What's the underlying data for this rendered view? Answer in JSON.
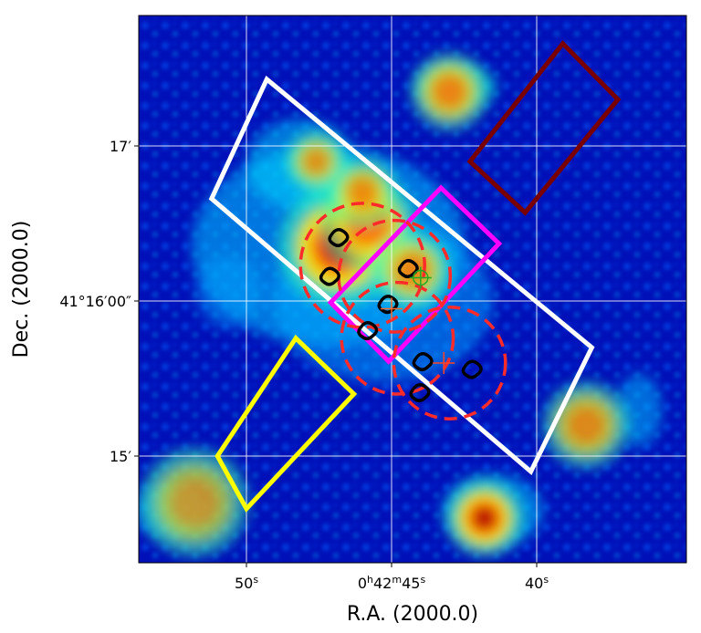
{
  "chart_data": {
    "type": "heatmap",
    "title": "",
    "xlabel": "R.A. (2000.0)",
    "ylabel": "Dec. (2000.0)",
    "colormap": "jet",
    "grid": true,
    "grid_color": "#ffffff",
    "x_ticks": [
      {
        "ra_sec": 50,
        "label_main": "50",
        "label_sup": "s",
        "prefix": ""
      },
      {
        "ra_sec": 45,
        "label_main": "45",
        "label_sup": "s",
        "prefix": "0h42m"
      },
      {
        "ra_sec": 40,
        "label_main": "40",
        "label_sup": "s",
        "prefix": ""
      }
    ],
    "y_ticks": [
      {
        "dec_arcmin": 17,
        "label": "17′"
      },
      {
        "dec_arcmin": 16,
        "label": "41°16′00″"
      },
      {
        "dec_arcmin": 15,
        "label": "15′"
      }
    ],
    "hotspots": [
      {
        "ra_sec": 46.8,
        "dec_arcmin": 16.35,
        "intensity": 1.0,
        "size": 0.28
      },
      {
        "ra_sec": 45.8,
        "dec_arcmin": 16.5,
        "intensity": 0.85,
        "size": 0.22
      },
      {
        "ra_sec": 44.3,
        "dec_arcmin": 16.2,
        "intensity": 0.7,
        "size": 0.18
      },
      {
        "ra_sec": 43.0,
        "dec_arcmin": 17.35,
        "intensity": 0.7,
        "size": 0.18
      },
      {
        "ra_sec": 41.8,
        "dec_arcmin": 14.6,
        "intensity": 1.0,
        "size": 0.18
      },
      {
        "ra_sec": 47.6,
        "dec_arcmin": 16.9,
        "intensity": 0.6,
        "size": 0.14
      },
      {
        "ra_sec": 46.0,
        "dec_arcmin": 16.7,
        "intensity": 0.65,
        "size": 0.16
      },
      {
        "ra_sec": 38.3,
        "dec_arcmin": 15.2,
        "intensity": 0.6,
        "size": 0.2
      },
      {
        "ra_sec": 51.8,
        "dec_arcmin": 14.7,
        "intensity": 0.45,
        "size": 0.25
      }
    ],
    "regions": [
      {
        "name": "white-box",
        "color": "#ffffff",
        "shape": "polygon",
        "points_ra_dec": [
          [
            51.2,
            16.66
          ],
          [
            49.3,
            17.43
          ],
          [
            38.1,
            15.7
          ],
          [
            40.2,
            14.9
          ]
        ]
      },
      {
        "name": "magenta-box",
        "color": "#ff00ff",
        "shape": "polygon",
        "points_ra_dec": [
          [
            47.1,
            15.99
          ],
          [
            43.3,
            16.73
          ],
          [
            41.3,
            16.37
          ],
          [
            45.1,
            15.61
          ]
        ]
      },
      {
        "name": "yellow-box",
        "color": "#ffff00",
        "shape": "polygon",
        "points_ra_dec": [
          [
            51.0,
            15.0
          ],
          [
            48.3,
            15.76
          ],
          [
            46.3,
            15.4
          ],
          [
            50.0,
            14.66
          ]
        ]
      },
      {
        "name": "dark-red-box",
        "color": "#7a0000",
        "shape": "polygon",
        "points_ra_dec": [
          [
            42.3,
            16.9
          ],
          [
            39.1,
            17.66
          ],
          [
            37.2,
            17.3
          ],
          [
            40.4,
            16.57
          ]
        ]
      }
    ],
    "circles": [
      {
        "ra_sec": 46.0,
        "dec_arcmin": 16.23,
        "radius_arcmin": 0.4,
        "color": "#ff2a2a"
      },
      {
        "ra_sec": 44.9,
        "dec_arcmin": 16.16,
        "radius_arcmin": 0.36,
        "color": "#ff2a2a"
      },
      {
        "ra_sec": 44.8,
        "dec_arcmin": 15.76,
        "radius_arcmin": 0.36,
        "color": "#ff2a2a"
      },
      {
        "ra_sec": 43.0,
        "dec_arcmin": 15.6,
        "radius_arcmin": 0.36,
        "color": "#ff2a2a"
      }
    ],
    "contours": [
      {
        "ra_sec": 46.8,
        "dec_arcmin": 16.4
      },
      {
        "ra_sec": 47.1,
        "dec_arcmin": 16.15
      },
      {
        "ra_sec": 44.4,
        "dec_arcmin": 16.2
      },
      {
        "ra_sec": 45.1,
        "dec_arcmin": 15.97
      },
      {
        "ra_sec": 45.8,
        "dec_arcmin": 15.8
      },
      {
        "ra_sec": 43.9,
        "dec_arcmin": 15.6
      },
      {
        "ra_sec": 42.2,
        "dec_arcmin": 15.55
      },
      {
        "ra_sec": 44.0,
        "dec_arcmin": 15.4
      }
    ],
    "markers": [
      {
        "ra_sec": 44.0,
        "dec_arcmin": 16.15,
        "color": "#22aa22",
        "kind": "circle-cross"
      },
      {
        "ra_sec": 45.0,
        "dec_arcmin": 15.95,
        "color": "#ff6a2a",
        "kind": "plus"
      },
      {
        "ra_sec": 43.2,
        "dec_arcmin": 15.6,
        "color": "#ff4422",
        "kind": "plus"
      }
    ]
  }
}
